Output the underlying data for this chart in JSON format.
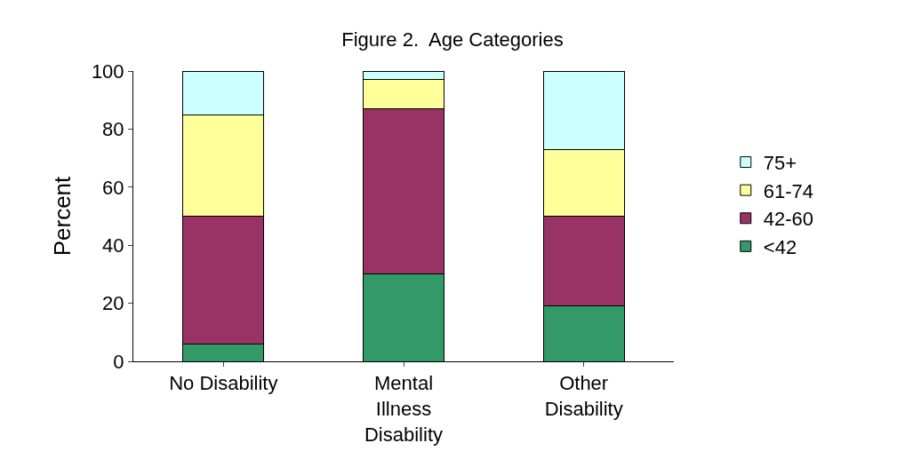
{
  "chart_data": {
    "type": "bar",
    "stacked": true,
    "title": "Figure 2.  Age Categories",
    "ylabel": "Percent",
    "categories": [
      "No Disability",
      "Mental Illness Disability",
      "Other Disability"
    ],
    "series": [
      {
        "name": "<42",
        "color": "#339966",
        "values": [
          6,
          30,
          19
        ]
      },
      {
        "name": "42-60",
        "color": "#993366",
        "values": [
          44,
          57,
          31
        ]
      },
      {
        "name": "61-74",
        "color": "#ffff99",
        "values": [
          35,
          10,
          23
        ]
      },
      {
        "name": "75+",
        "color": "#ccffff",
        "values": [
          15,
          3,
          27
        ]
      }
    ],
    "ylim": [
      0,
      100
    ],
    "yticks": [
      0,
      20,
      40,
      60,
      80,
      100
    ],
    "grid": false,
    "legend": "right"
  }
}
